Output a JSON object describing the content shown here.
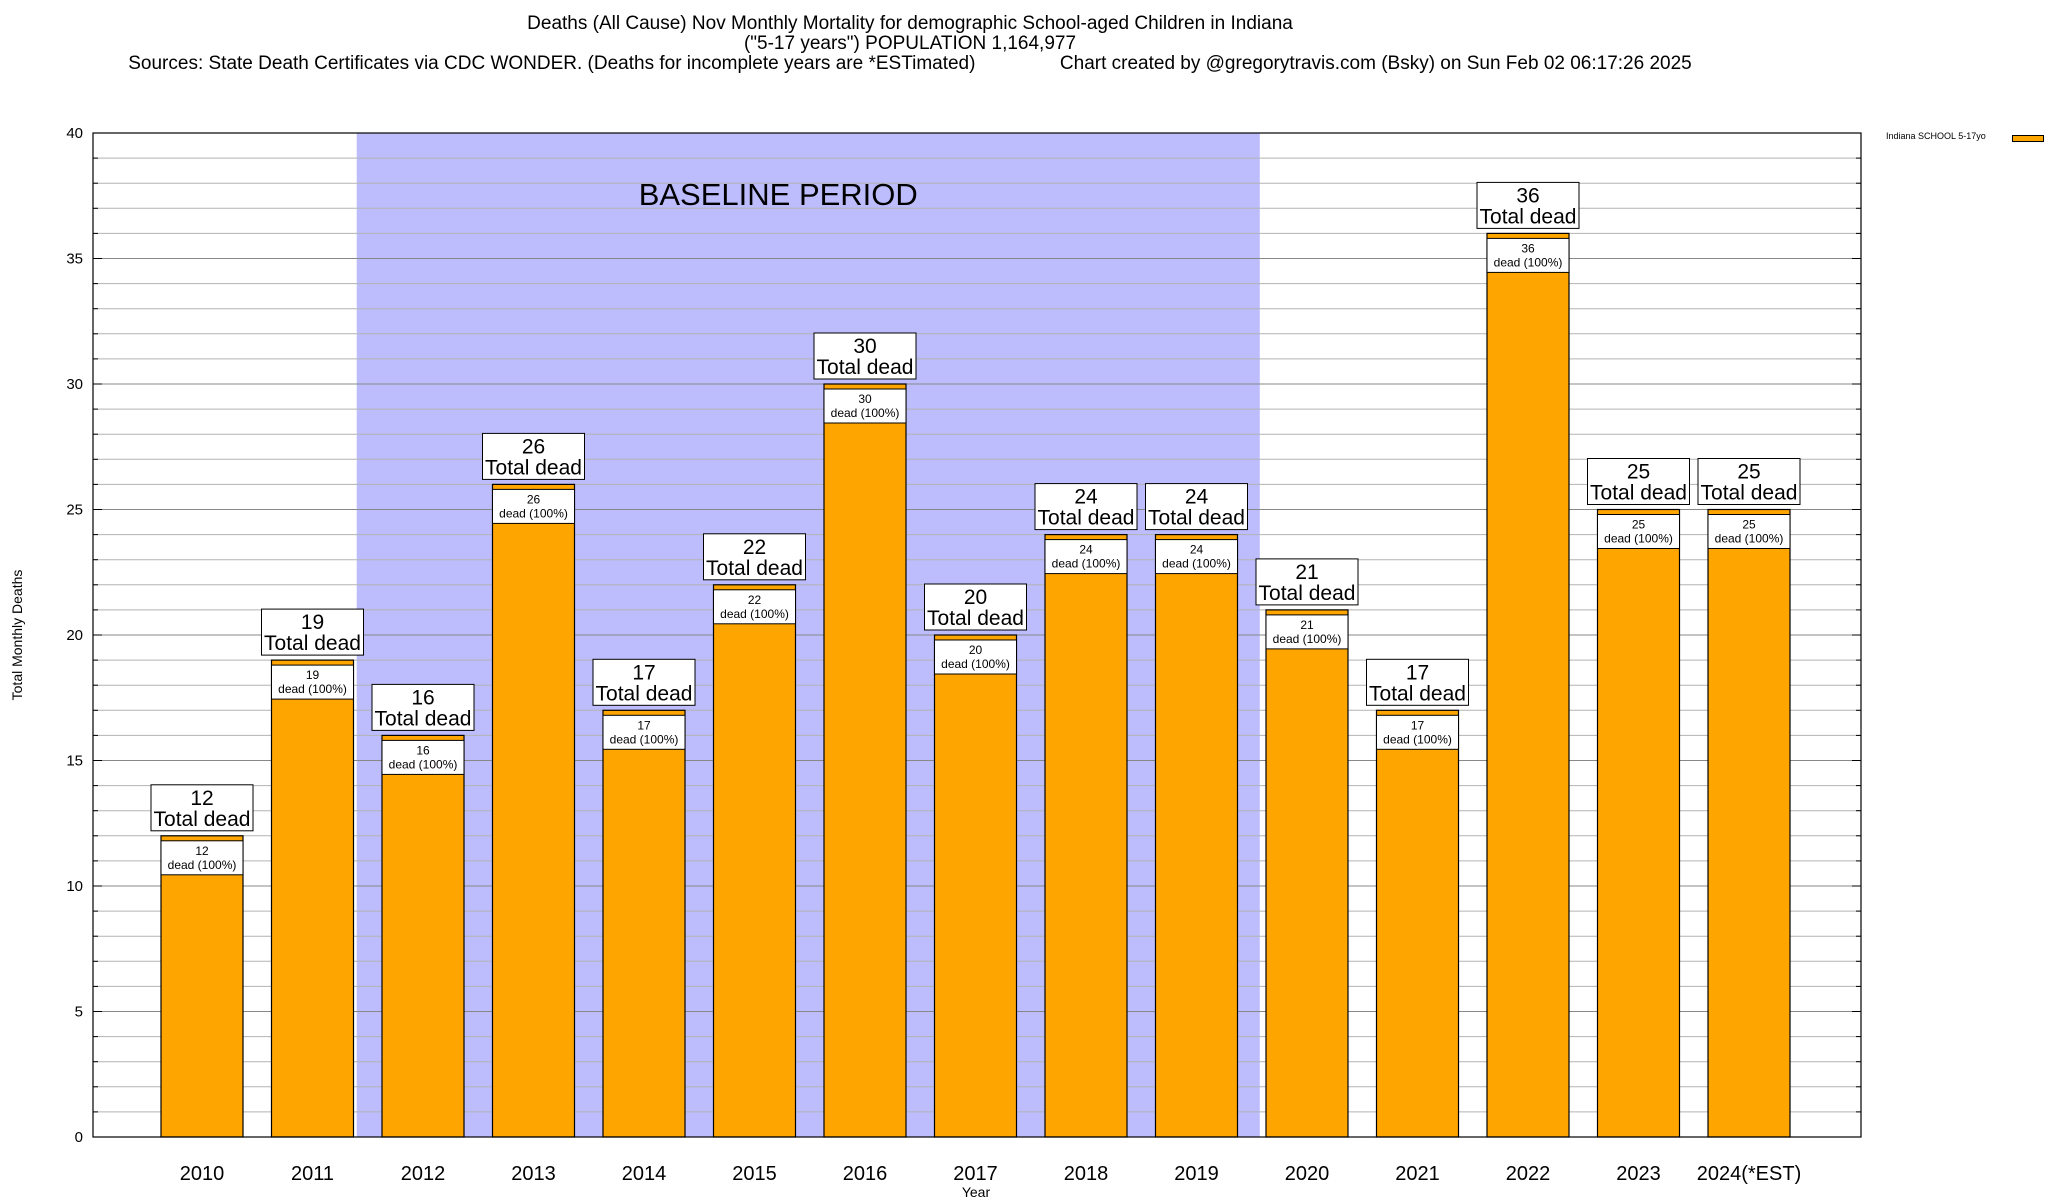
{
  "title": {
    "line1": "Deaths (All Cause) Nov Monthly Mortality for demographic School-aged Children in Indiana",
    "line2": "(\"5-17 years\") POPULATION 1,164,977",
    "line3": "Sources: State Death Certificates via CDC WONDER. (Deaths for incomplete years are *ESTimated)                Chart created by @gregorytravis.com (Bsky) on Sun Feb 02 06:17:26 2025"
  },
  "chart_data": {
    "type": "bar",
    "title": "Deaths (All Cause) Nov Monthly Mortality for demographic School-aged Children in Indiana",
    "xlabel": "Year",
    "ylabel": "Total Monthly Deaths",
    "ylim": [
      0,
      40
    ],
    "y_ticks": [
      0,
      5,
      10,
      15,
      20,
      25,
      30,
      35,
      40
    ],
    "categories": [
      "2010",
      "2011",
      "2012",
      "2013",
      "2014",
      "2015",
      "2016",
      "2017",
      "2018",
      "2019",
      "2020",
      "2021",
      "2022",
      "2023",
      "2024(*EST)"
    ],
    "series": [
      {
        "name": "Indiana SCHOOL 5-17yo",
        "color": "#ffa500",
        "values": [
          12,
          19,
          16,
          26,
          17,
          22,
          30,
          20,
          24,
          24,
          21,
          17,
          36,
          25,
          25
        ]
      }
    ],
    "bar_labels": {
      "total_suffix": "Total dead",
      "inner_suffix": "dead (100%)"
    },
    "baseline_region": {
      "label": "BASELINE PERIOD",
      "from": "2012",
      "to": "2019",
      "color": "#bdbdfd"
    },
    "grid": true,
    "legend_position": "top-right"
  }
}
